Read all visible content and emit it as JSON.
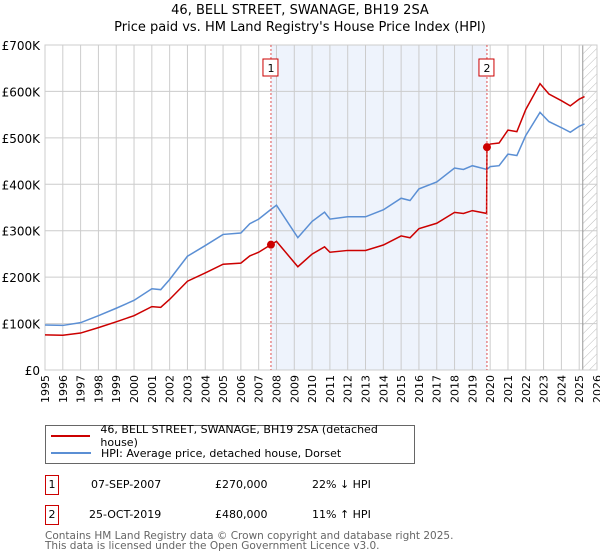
{
  "chart_data": {
    "type": "line",
    "title": "46, BELL STREET, SWANAGE, BH19 2SA",
    "subtitle": "Price paid vs. HM Land Registry's House Price Index (HPI)",
    "xlim": [
      1995,
      2026
    ],
    "ylim": [
      0,
      700000
    ],
    "y_ticks": [
      {
        "v": 0,
        "label": "£0"
      },
      {
        "v": 100000,
        "label": "£100K"
      },
      {
        "v": 200000,
        "label": "£200K"
      },
      {
        "v": 300000,
        "label": "£300K"
      },
      {
        "v": 400000,
        "label": "£400K"
      },
      {
        "v": 500000,
        "label": "£500K"
      },
      {
        "v": 600000,
        "label": "£600K"
      },
      {
        "v": 700000,
        "label": "£700K"
      }
    ],
    "x_ticks": [
      "1995",
      "1996",
      "1997",
      "1998",
      "1999",
      "2000",
      "2001",
      "2002",
      "2003",
      "2004",
      "2005",
      "2006",
      "2007",
      "2008",
      "2009",
      "2010",
      "2011",
      "2012",
      "2013",
      "2014",
      "2015",
      "2016",
      "2017",
      "2018",
      "2019",
      "2020",
      "2021",
      "2022",
      "2023",
      "2024",
      "2025",
      "2026"
    ],
    "grid": true,
    "hpi_x": [
      1995,
      1996,
      1997,
      1998,
      1999,
      2000,
      2001,
      2001.5,
      2002,
      2003,
      2004,
      2005,
      2006,
      2006.5,
      2007,
      2007.69,
      2008,
      2009.2,
      2010,
      2010.7,
      2011,
      2012,
      2013,
      2014,
      2015,
      2015.5,
      2016,
      2017,
      2018,
      2018.5,
      2019,
      2019.82,
      2020,
      2020.5,
      2021,
      2021.5,
      2022,
      2022.8,
      2023.3,
      2024,
      2024.5,
      2025,
      2025.3
    ],
    "hpi_y": [
      97000,
      96000,
      102000,
      117000,
      133000,
      150000,
      175000,
      173000,
      195000,
      245000,
      268000,
      292000,
      295000,
      315000,
      325000,
      346000,
      355000,
      285000,
      320000,
      340000,
      325000,
      330000,
      330000,
      345000,
      370000,
      365000,
      390000,
      405000,
      435000,
      432000,
      440000,
      432000,
      438000,
      440000,
      465000,
      462000,
      505000,
      555000,
      535000,
      522000,
      512000,
      525000,
      530000
    ],
    "series": [
      {
        "name": "46, BELL STREET, SWANAGE, BH19 2SA (detached house)",
        "color": "#cc0000"
      },
      {
        "name": "HPI: Average price, detached house, Dorset",
        "color": "#5b8fd4"
      }
    ],
    "sales": [
      {
        "id": "1",
        "x": 2007.69,
        "date": "07-SEP-2007",
        "price": 270000,
        "price_label": "£270,000",
        "hpi_diff": "22% ↓ HPI"
      },
      {
        "id": "2",
        "x": 2019.82,
        "date": "25-OCT-2019",
        "price": 480000,
        "price_label": "£480,000",
        "hpi_diff": "11% ↑ HPI"
      }
    ],
    "forecast_start": 2025.2
  },
  "footer": {
    "line1": "Contains HM Land Registry data © Crown copyright and database right 2025.",
    "line2": "This data is licensed under the Open Government Licence v3.0."
  }
}
